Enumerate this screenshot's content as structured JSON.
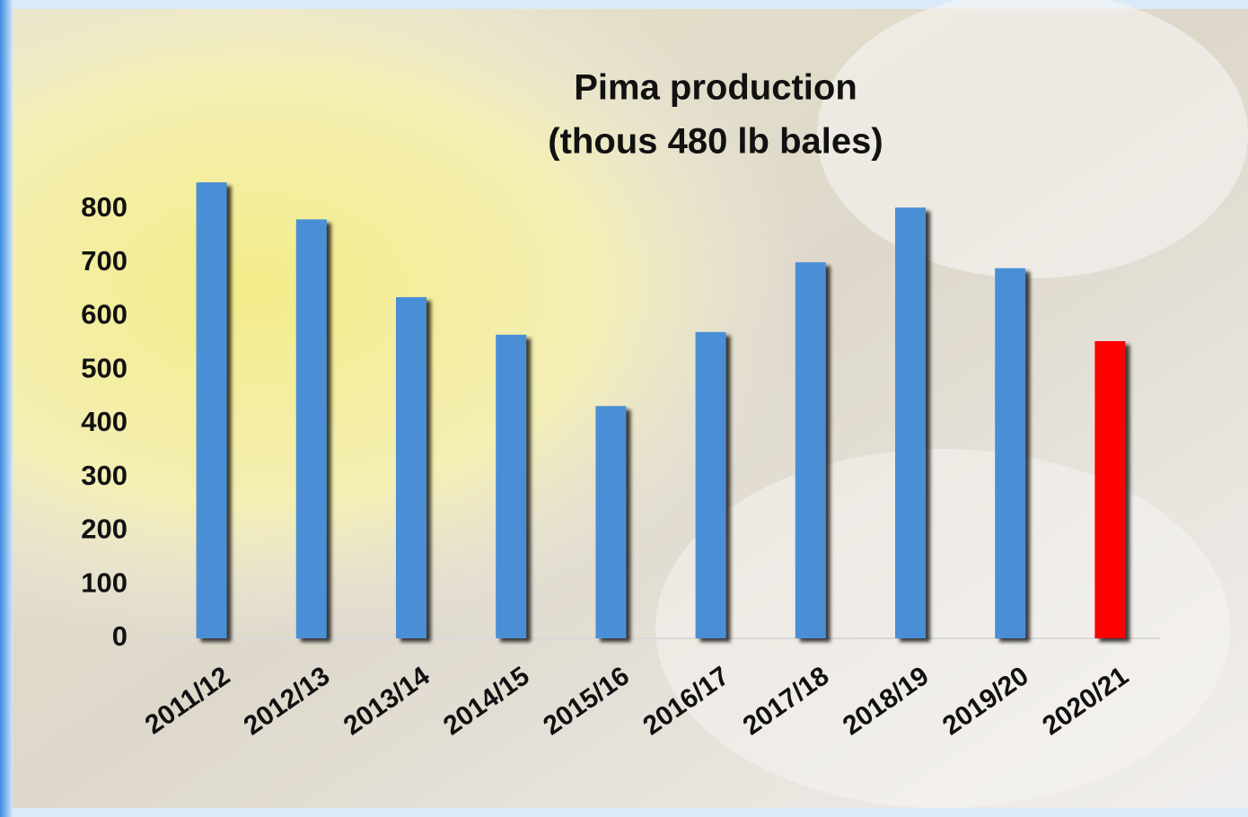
{
  "chart_data": {
    "type": "bar",
    "title": "Pima production",
    "subtitle": "(thous 480 lb bales)",
    "categories": [
      "2011/12",
      "2012/13",
      "2013/14",
      "2014/15",
      "2015/16",
      "2016/17",
      "2017/18",
      "2018/19",
      "2019/20",
      "2020/21"
    ],
    "values": [
      850,
      781,
      636,
      566,
      433,
      571,
      701,
      803,
      690,
      554
    ],
    "colors": [
      "#4a8fd6",
      "#4a8fd6",
      "#4a8fd6",
      "#4a8fd6",
      "#4a8fd6",
      "#4a8fd6",
      "#4a8fd6",
      "#4a8fd6",
      "#4a8fd6",
      "#ff0000"
    ],
    "ylim": [
      0,
      800
    ],
    "yticks": [
      0,
      100,
      200,
      300,
      400,
      500,
      600,
      700,
      800
    ],
    "grid": false
  }
}
